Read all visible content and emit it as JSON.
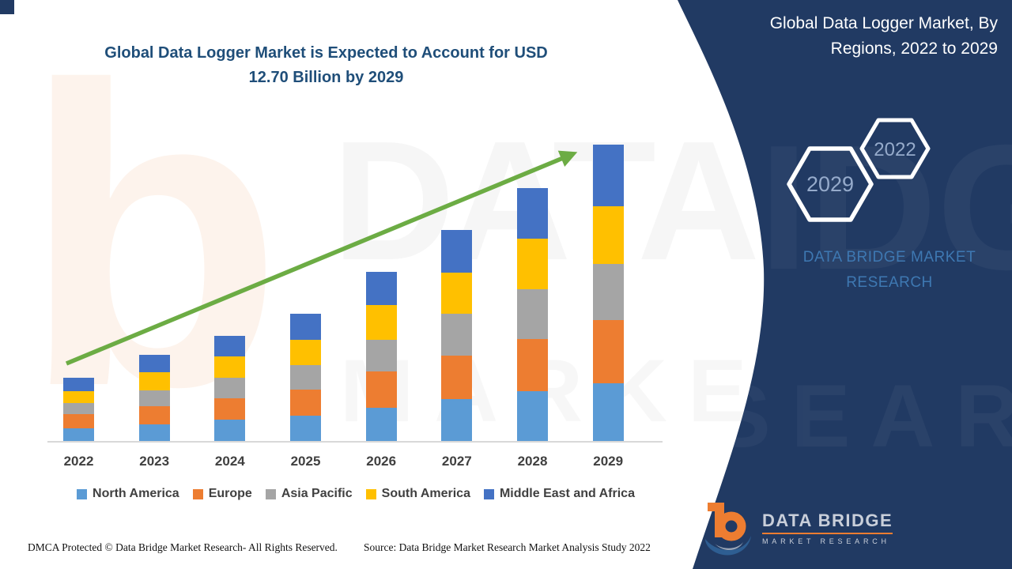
{
  "title": {
    "line1": "Global Data Logger Market is Expected to Account for USD",
    "line2": "12.70 Billion by 2029"
  },
  "watermark": {
    "row1": "DATABRIDGE",
    "row2": "MARKET RESEARCH",
    "letter_b": "b",
    "panel_word1": "IDGE",
    "panel_word2": "SEARCH"
  },
  "chart_data": {
    "type": "bar",
    "stacked": true,
    "title": "Global Data Logger Market is Expected to Account for USD 12.70 Billion by 2029",
    "unit": "USD Billion",
    "categories": [
      "2022",
      "2023",
      "2024",
      "2025",
      "2026",
      "2027",
      "2028",
      "2029"
    ],
    "series": [
      {
        "name": "North America",
        "color": "#5B9BD5",
        "values": [
          0.56,
          0.72,
          0.9,
          1.08,
          1.42,
          1.8,
          2.15,
          2.46
        ]
      },
      {
        "name": "Europe",
        "color": "#ED7D31",
        "values": [
          0.58,
          0.78,
          0.94,
          1.12,
          1.55,
          1.86,
          2.22,
          2.71
        ]
      },
      {
        "name": "Asia Pacific",
        "color": "#A5A5A5",
        "values": [
          0.48,
          0.66,
          0.86,
          1.05,
          1.37,
          1.8,
          2.14,
          2.43
        ]
      },
      {
        "name": "South America",
        "color": "#FFC000",
        "values": [
          0.52,
          0.8,
          0.92,
          1.1,
          1.49,
          1.76,
          2.16,
          2.46
        ]
      },
      {
        "name": "Middle East and Africa",
        "color": "#4472C4",
        "values": [
          0.56,
          0.74,
          0.88,
          1.1,
          1.43,
          1.84,
          2.18,
          2.64
        ]
      }
    ],
    "totals": [
      2.7,
      3.7,
      4.5,
      5.45,
      7.26,
      9.06,
      10.85,
      12.7
    ],
    "ylim": [
      0,
      13
    ],
    "gridlines": false,
    "y_axis_visible": false,
    "legend_position": "bottom",
    "trend_arrow_color": "#6CAC44"
  },
  "panel": {
    "title_line1": "Global Data Logger Market, By",
    "title_line2": "Regions, 2022 to 2029",
    "hexagon_big": "2029",
    "hexagon_small": "2022",
    "brand_line1": "DATA BRIDGE MARKET",
    "brand_line2": "RESEARCH",
    "accent_navy": "#213A63",
    "logo_name": "DATA BRIDGE",
    "logo_sub": "MARKET RESEARCH"
  },
  "footer": {
    "dmca": "DMCA Protected © Data Bridge Market Research- All Rights Reserved.",
    "source": "Source: Data Bridge Market Research Market Analysis Study 2022"
  }
}
